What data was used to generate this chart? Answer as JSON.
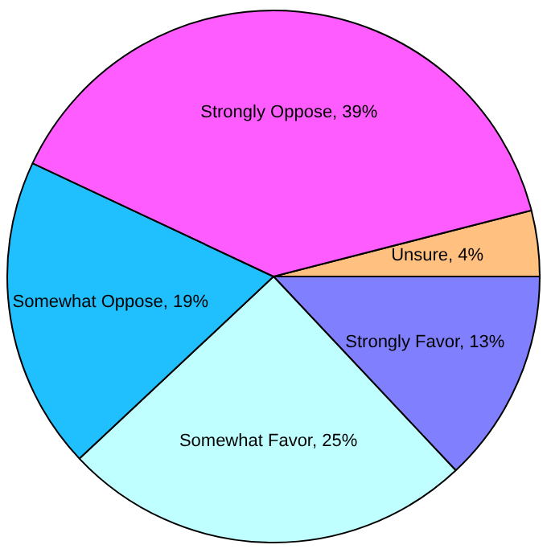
{
  "chart_data": {
    "type": "pie",
    "categories": [
      "Unsure",
      "Strongly Favor",
      "Somewhat Favor",
      "Somewhat Oppose",
      "Strongly Oppose"
    ],
    "values": [
      4,
      13,
      25,
      19,
      39
    ],
    "colors": [
      "#ffc080",
      "#8080ff",
      "#c0ffff",
      "#20c0ff",
      "#ff5cff"
    ],
    "value_labels": [
      "4%",
      "13%",
      "25%",
      "19%",
      "39%"
    ],
    "legend": false
  }
}
